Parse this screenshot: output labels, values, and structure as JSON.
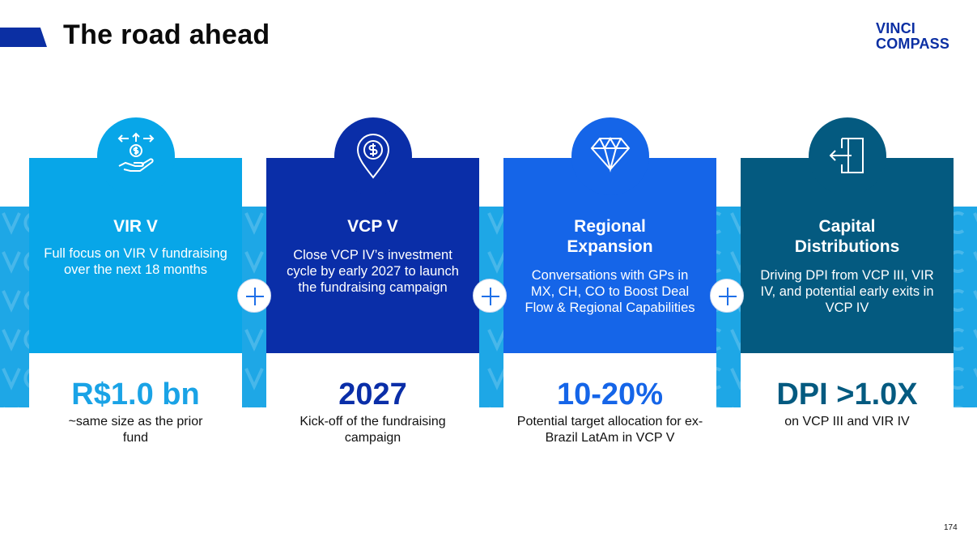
{
  "header": {
    "title": "The road ahead",
    "logo_line1": "VINCI",
    "logo_line2": "COMPASS"
  },
  "colors": {
    "brand": "#0b2fa3",
    "band": "#1ea7e6",
    "card1": "#08a6e8",
    "card2": "#0a2ea8",
    "card3": "#1565e8",
    "card4": "#045a80"
  },
  "cards": [
    {
      "icon": "money-hand-icon",
      "title": "VIR V",
      "description": "Full focus on VIR V fundraising over the next 18 months",
      "metric": "R$1.0 bn",
      "metric_description": "~same size as the prior fund",
      "metric_color": "#1aa3e6"
    },
    {
      "icon": "dollar-pin-icon",
      "title": "VCP V",
      "description": "Close VCP IV’s investment cycle by early 2027 to launch the fundraising campaign",
      "metric": "2027",
      "metric_description": "Kick-off of the fundraising campaign",
      "metric_color": "#0a2ea8"
    },
    {
      "icon": "diamond-icon",
      "title": "Regional Expansion",
      "description": "Conversations with GPs in MX, CH, CO to Boost Deal Flow & Regional Capabilities",
      "metric": "10-20%",
      "metric_description": "Potential target allocation for ex-Brazil LatAm in VCP V",
      "metric_color": "#1565e8"
    },
    {
      "icon": "exit-door-icon",
      "title": "Capital Distributions",
      "description": "Driving DPI from VCP III, VIR IV, and potential early exits in VCP IV",
      "metric": "DPI >1.0X",
      "metric_description": "on VCP III and VIR IV",
      "metric_color": "#045a80"
    }
  ],
  "footer": {
    "page_number": "174"
  }
}
